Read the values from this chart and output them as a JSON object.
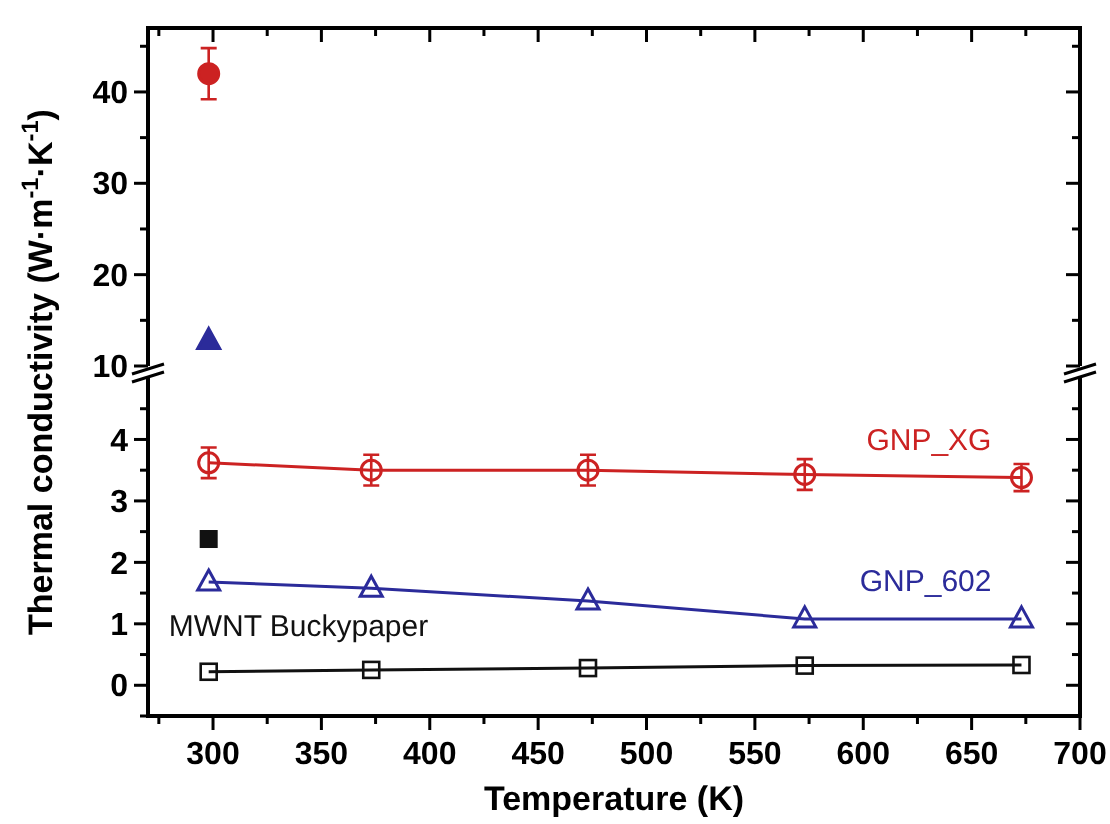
{
  "chart_data": [
    {
      "type": "scatter",
      "ylabel": "Thermal conductivity (W·m$^{-1}$·K$^{-1}$)",
      "xlim": [
        270,
        700
      ],
      "ylim": [
        10,
        47
      ],
      "tick_labels": "y",
      "xticks": [
        {
          "value": 275,
          "label": null
        },
        300,
        {
          "value": 325,
          "label": null
        },
        350,
        {
          "value": 375,
          "label": null
        },
        400,
        {
          "value": 425,
          "label": null
        },
        450,
        {
          "value": 475,
          "label": null
        },
        500,
        {
          "value": 525,
          "label": null
        },
        550,
        {
          "value": 575,
          "label": null
        },
        600,
        {
          "value": 625,
          "label": null
        },
        650,
        {
          "value": 675,
          "label": null
        },
        700
      ],
      "yticks": [
        10,
        {
          "value": 15,
          "label": null
        },
        20,
        {
          "value": 25,
          "label": null
        },
        30,
        {
          "value": 35,
          "label": null
        },
        40,
        {
          "value": 45,
          "label": null
        }
      ],
      "series": [
        {
          "color": "#cc2222",
          "marker": "circle",
          "x": [
            298
          ],
          "values": [
            42
          ],
          "errors": [
            2.8
          ]
        },
        {
          "color": "#2b2b9a",
          "marker": "triangle",
          "x": [
            298
          ],
          "values": [
            12.8
          ]
        }
      ]
    },
    {
      "type": "line",
      "xlabel": "Temperature (K)",
      "xlim": [
        270,
        700
      ],
      "ylim": [
        -0.5,
        5
      ],
      "xticks": [
        {
          "value": 275,
          "label": null
        },
        300,
        {
          "value": 325,
          "label": null
        },
        350,
        {
          "value": 375,
          "label": null
        },
        400,
        {
          "value": 425,
          "label": null
        },
        450,
        {
          "value": 475,
          "label": null
        },
        500,
        {
          "value": 525,
          "label": null
        },
        550,
        {
          "value": 575,
          "label": null
        },
        600,
        {
          "value": 625,
          "label": null
        },
        650,
        {
          "value": 675,
          "label": null
        },
        700
      ],
      "yticks": [
        {
          "value": -0.5,
          "label": null
        },
        0,
        {
          "value": 0.5,
          "label": null
        },
        1,
        {
          "value": 1.5,
          "label": null
        },
        2,
        {
          "value": 2.5,
          "label": null
        },
        3,
        {
          "value": 3.5,
          "label": null
        },
        4,
        {
          "value": 4.5,
          "label": null
        }
      ],
      "series": [
        {
          "name": "GNP_XG",
          "color": "#cc2222",
          "marker": "circle",
          "x": [
            298,
            373,
            473,
            573,
            673
          ],
          "values": [
            3.62,
            3.5,
            3.5,
            3.43,
            3.38
          ],
          "errors": [
            0.25,
            0.25,
            0.25,
            0.25,
            0.22
          ]
        },
        {
          "name": "GNP_602",
          "color": "#2b2b9a",
          "marker": "triangle",
          "x": [
            298,
            373,
            473,
            573,
            673
          ],
          "values": [
            1.68,
            1.58,
            1.37,
            1.08,
            1.08
          ]
        },
        {
          "name": "MWNT Buckypaper",
          "color": "#111111",
          "marker": "square",
          "x": [
            298,
            373,
            473,
            573,
            673
          ],
          "values": [
            0.22,
            0.25,
            0.28,
            0.32,
            0.33
          ]
        },
        {
          "type": "scatter",
          "color": "#111111",
          "marker": "square",
          "x": [
            298
          ],
          "values": [
            2.38
          ]
        }
      ]
    }
  ]
}
